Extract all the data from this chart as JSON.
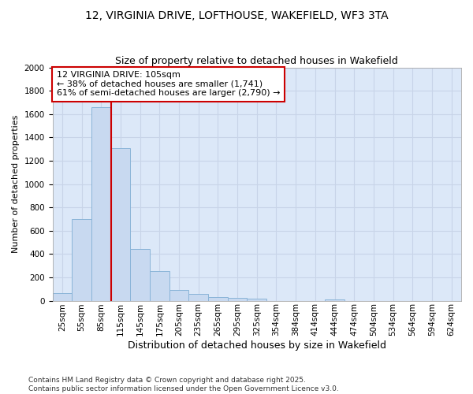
{
  "title": "12, VIRGINIA DRIVE, LOFTHOUSE, WAKEFIELD, WF3 3TA",
  "subtitle": "Size of property relative to detached houses in Wakefield",
  "xlabel": "Distribution of detached houses by size in Wakefield",
  "ylabel": "Number of detached properties",
  "categories": [
    "25sqm",
    "55sqm",
    "85sqm",
    "115sqm",
    "145sqm",
    "175sqm",
    "205sqm",
    "235sqm",
    "265sqm",
    "295sqm",
    "325sqm",
    "354sqm",
    "384sqm",
    "414sqm",
    "444sqm",
    "474sqm",
    "504sqm",
    "534sqm",
    "564sqm",
    "594sqm",
    "624sqm"
  ],
  "values": [
    65,
    700,
    1660,
    1310,
    440,
    255,
    90,
    55,
    30,
    22,
    18,
    0,
    0,
    0,
    12,
    0,
    0,
    0,
    0,
    0,
    0
  ],
  "bar_color": "#c8d9f0",
  "bar_edge_color": "#8ab4d8",
  "grid_color": "#c8d4e8",
  "background_color": "#dce8f8",
  "annotation_box_color": "#cc0000",
  "property_line_bin": 3,
  "annotation_title": "12 VIRGINIA DRIVE: 105sqm",
  "annotation_line1": "← 38% of detached houses are smaller (1,741)",
  "annotation_line2": "61% of semi-detached houses are larger (2,790) →",
  "footnote1": "Contains HM Land Registry data © Crown copyright and database right 2025.",
  "footnote2": "Contains public sector information licensed under the Open Government Licence v3.0.",
  "ylim": [
    0,
    2000
  ],
  "yticks": [
    0,
    200,
    400,
    600,
    800,
    1000,
    1200,
    1400,
    1600,
    1800,
    2000
  ],
  "title_fontsize": 10,
  "subtitle_fontsize": 9,
  "ylabel_fontsize": 8,
  "xlabel_fontsize": 9,
  "tick_fontsize": 7.5,
  "annot_fontsize": 8,
  "footnote_fontsize": 6.5
}
